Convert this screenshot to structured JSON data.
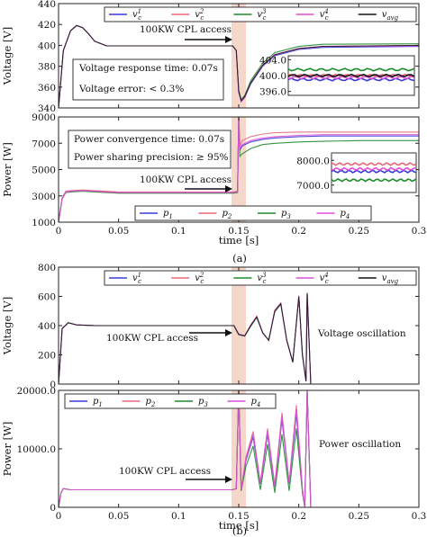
{
  "colors": {
    "series1": "#3b3bd8",
    "series2": "#e56a78",
    "series3": "#1f8a2e",
    "series4": "#e04fd8",
    "avg": "#111111",
    "highlight": "#f2c9b8",
    "frame": "#222222"
  },
  "chart_data": [
    {
      "type": "line",
      "panel": "a-voltage",
      "title": "",
      "xlabel": "",
      "ylabel": "Voltage [V]",
      "xlim": [
        0,
        0.3
      ],
      "ylim": [
        340,
        440
      ],
      "yticks": [
        "340",
        "360",
        "380",
        "400",
        "420",
        "440"
      ],
      "annotations": [
        "100KW CPL access",
        "Voltage response time: 0.07s",
        "Voltage error: < 0.3%"
      ],
      "legend": {
        "placement": "top-right",
        "entries": [
          "v_c^1",
          "v_c^2",
          "v_c^3",
          "v_c^4",
          "v_avg"
        ]
      },
      "inset": {
        "yticks": [
          "404.0",
          "400.0",
          "396.0"
        ]
      },
      "series": [
        {
          "name": "v_c^1",
          "x": [
            0,
            0.004,
            0.01,
            0.015,
            0.02,
            0.025,
            0.03,
            0.04,
            0.05,
            0.145,
            0.148,
            0.15,
            0.152,
            0.155,
            0.16,
            0.17,
            0.18,
            0.2,
            0.22,
            0.3
          ],
          "y": [
            340,
            395,
            414,
            419,
            417,
            411,
            404,
            399.5,
            399.5,
            399.5,
            395,
            355,
            346,
            350,
            363,
            380,
            390,
            396,
            398,
            399
          ]
        },
        {
          "name": "v_c^2",
          "x": [
            0,
            0.004,
            0.01,
            0.015,
            0.02,
            0.025,
            0.03,
            0.04,
            0.05,
            0.145,
            0.148,
            0.15,
            0.152,
            0.155,
            0.16,
            0.17,
            0.18,
            0.2,
            0.22,
            0.3
          ],
          "y": [
            340,
            395,
            414,
            419,
            417,
            411,
            404,
            399.5,
            399.5,
            399.5,
            395,
            356,
            347,
            351,
            364,
            381,
            391,
            397,
            399,
            400
          ]
        },
        {
          "name": "v_c^3",
          "x": [
            0,
            0.004,
            0.01,
            0.015,
            0.02,
            0.025,
            0.03,
            0.04,
            0.05,
            0.145,
            0.148,
            0.15,
            0.152,
            0.155,
            0.16,
            0.17,
            0.18,
            0.2,
            0.22,
            0.3
          ],
          "y": [
            340,
            395,
            414,
            419,
            417,
            411,
            404,
            399.5,
            399.5,
            399.5,
            395,
            357,
            348,
            352,
            366,
            383,
            393,
            399,
            401,
            401.5
          ]
        },
        {
          "name": "v_c^4",
          "x": [
            0,
            0.004,
            0.01,
            0.015,
            0.02,
            0.025,
            0.03,
            0.04,
            0.05,
            0.145,
            0.148,
            0.15,
            0.152,
            0.155,
            0.16,
            0.17,
            0.18,
            0.2,
            0.22,
            0.3
          ],
          "y": [
            340,
            395,
            414,
            419,
            417,
            411,
            404,
            399.5,
            399.5,
            399.5,
            395,
            355,
            346,
            350,
            364,
            381,
            391,
            397,
            399,
            399.5
          ]
        },
        {
          "name": "v_avg",
          "x": [
            0,
            0.004,
            0.01,
            0.015,
            0.02,
            0.025,
            0.03,
            0.04,
            0.05,
            0.145,
            0.148,
            0.15,
            0.152,
            0.155,
            0.16,
            0.17,
            0.18,
            0.2,
            0.22,
            0.3
          ],
          "y": [
            340,
            395,
            414,
            419,
            417,
            411,
            404,
            399.5,
            399.5,
            399.5,
            395,
            356,
            347,
            351,
            364,
            381,
            391,
            397,
            399,
            400
          ]
        }
      ]
    },
    {
      "type": "line",
      "panel": "a-power",
      "title": "",
      "xlabel": "time [s]",
      "ylabel": "Power [W]",
      "xlim": [
        0,
        0.3
      ],
      "ylim": [
        1000,
        9000
      ],
      "xticks": [
        "0",
        "0.05",
        "0.1",
        "0.15",
        "0.2",
        "0.25",
        "0.3"
      ],
      "yticks": [
        "1000",
        "3000",
        "5000",
        "7000",
        "9000"
      ],
      "annotations": [
        "100KW CPL access",
        "Power convergence time: 0.07s",
        "Power sharing precision: ≥ 95%"
      ],
      "legend": {
        "placement": "bottom-center",
        "entries": [
          "p_1",
          "p_2",
          "p_3",
          "p_4"
        ]
      },
      "inset": {
        "yticks": [
          "8000.0",
          "7000.0"
        ]
      },
      "series": [
        {
          "name": "p_1",
          "x": [
            0,
            0.003,
            0.006,
            0.01,
            0.02,
            0.03,
            0.04,
            0.05,
            0.145,
            0.149,
            0.15,
            0.151,
            0.153,
            0.16,
            0.17,
            0.18,
            0.2,
            0.22,
            0.25,
            0.3
          ],
          "y": [
            1000,
            2800,
            3300,
            3350,
            3400,
            3350,
            3300,
            3250,
            3250,
            3300,
            9000,
            6500,
            6800,
            7100,
            7300,
            7400,
            7500,
            7550,
            7550,
            7550
          ]
        },
        {
          "name": "p_2",
          "x": [
            0,
            0.003,
            0.006,
            0.01,
            0.02,
            0.03,
            0.04,
            0.05,
            0.145,
            0.149,
            0.15,
            0.151,
            0.153,
            0.16,
            0.17,
            0.18,
            0.2,
            0.22,
            0.25,
            0.3
          ],
          "y": [
            1000,
            2850,
            3350,
            3400,
            3450,
            3400,
            3350,
            3300,
            3300,
            3350,
            9000,
            6800,
            7200,
            7500,
            7700,
            7800,
            7850,
            7850,
            7850,
            7850
          ]
        },
        {
          "name": "p_3",
          "x": [
            0,
            0.003,
            0.006,
            0.01,
            0.02,
            0.03,
            0.04,
            0.05,
            0.145,
            0.149,
            0.15,
            0.151,
            0.153,
            0.16,
            0.17,
            0.18,
            0.2,
            0.22,
            0.25,
            0.3
          ],
          "y": [
            1000,
            2750,
            3250,
            3300,
            3350,
            3300,
            3250,
            3200,
            3200,
            3250,
            9000,
            6000,
            6200,
            6600,
            6900,
            7000,
            7100,
            7150,
            7200,
            7200
          ]
        },
        {
          "name": "p_4",
          "x": [
            0,
            0.003,
            0.006,
            0.01,
            0.02,
            0.03,
            0.04,
            0.05,
            0.145,
            0.149,
            0.15,
            0.151,
            0.153,
            0.16,
            0.17,
            0.18,
            0.2,
            0.22,
            0.25,
            0.3
          ],
          "y": [
            1000,
            2800,
            3300,
            3350,
            3400,
            3350,
            3300,
            3250,
            3250,
            3300,
            9000,
            6600,
            6900,
            7200,
            7400,
            7500,
            7600,
            7650,
            7650,
            7650
          ]
        }
      ]
    },
    {
      "type": "line",
      "panel": "b-voltage",
      "title": "",
      "xlabel": "",
      "ylabel": "Voltage [V]",
      "xlim": [
        0,
        0.3
      ],
      "ylim": [
        0,
        800
      ],
      "yticks": [
        "0",
        "200",
        "400",
        "600",
        "800"
      ],
      "annotations": [
        "100KW CPL access",
        "Voltage oscillation"
      ],
      "legend": {
        "placement": "top-right",
        "entries": [
          "v_c^1",
          "v_c^2",
          "v_c^3",
          "v_c^4",
          "v_avg"
        ]
      },
      "series": [
        {
          "name": "v_c^1",
          "x": [
            0,
            0.003,
            0.008,
            0.015,
            0.03,
            0.146,
            0.15,
            0.155,
            0.16,
            0.165,
            0.17,
            0.175,
            0.18,
            0.185,
            0.19,
            0.195,
            0.2,
            0.203,
            0.206,
            0.207,
            0.21,
            0.3
          ],
          "y": [
            0,
            380,
            420,
            405,
            400,
            400,
            340,
            330,
            400,
            460,
            350,
            300,
            500,
            550,
            300,
            150,
            600,
            200,
            20,
            620,
            0,
            0
          ]
        },
        {
          "name": "v_c^2",
          "x": [
            0,
            0.003,
            0.008,
            0.015,
            0.03,
            0.146,
            0.15,
            0.155,
            0.16,
            0.165,
            0.17,
            0.175,
            0.18,
            0.185,
            0.19,
            0.195,
            0.2,
            0.203,
            0.206,
            0.207,
            0.21,
            0.3
          ],
          "y": [
            0,
            380,
            420,
            405,
            400,
            400,
            342,
            332,
            405,
            465,
            352,
            298,
            505,
            555,
            298,
            148,
            605,
            205,
            22,
            625,
            0,
            0
          ]
        },
        {
          "name": "v_c^3",
          "x": [
            0,
            0.003,
            0.008,
            0.015,
            0.03,
            0.146,
            0.15,
            0.155,
            0.16,
            0.165,
            0.17,
            0.175,
            0.18,
            0.185,
            0.19,
            0.195,
            0.2,
            0.203,
            0.206,
            0.207,
            0.21,
            0.3
          ],
          "y": [
            0,
            380,
            420,
            405,
            400,
            400,
            338,
            328,
            395,
            455,
            348,
            302,
            495,
            545,
            302,
            152,
            595,
            198,
            18,
            615,
            0,
            0
          ]
        },
        {
          "name": "v_c^4",
          "x": [
            0,
            0.003,
            0.008,
            0.015,
            0.03,
            0.146,
            0.15,
            0.155,
            0.16,
            0.165,
            0.17,
            0.175,
            0.18,
            0.185,
            0.19,
            0.195,
            0.2,
            0.203,
            0.206,
            0.207,
            0.21,
            0.3
          ],
          "y": [
            0,
            380,
            420,
            405,
            400,
            400,
            341,
            331,
            402,
            462,
            351,
            300,
            502,
            552,
            300,
            150,
            602,
            202,
            20,
            622,
            0,
            0
          ]
        },
        {
          "name": "v_avg",
          "x": [
            0,
            0.003,
            0.008,
            0.015,
            0.03,
            0.146,
            0.15,
            0.155,
            0.16,
            0.165,
            0.17,
            0.175,
            0.18,
            0.185,
            0.19,
            0.195,
            0.2,
            0.203,
            0.206,
            0.207,
            0.21,
            0.3
          ],
          "y": [
            0,
            380,
            420,
            405,
            400,
            400,
            340,
            330,
            400,
            460,
            350,
            300,
            500,
            550,
            300,
            150,
            600,
            200,
            20,
            620,
            0,
            0
          ]
        }
      ]
    },
    {
      "type": "line",
      "panel": "b-power",
      "title": "",
      "xlabel": "time [s]",
      "ylabel": "Power [W]",
      "xlim": [
        0,
        0.3
      ],
      "ylim": [
        0,
        20000
      ],
      "xticks": [
        "0",
        "0.05",
        "0.1",
        "0.15",
        "0.2",
        "0.25",
        "0.3"
      ],
      "yticks": [
        "0",
        "10000.0",
        "20000.0"
      ],
      "annotations": [
        "100KW CPL access",
        "Power oscillation"
      ],
      "legend": {
        "placement": "top-left",
        "entries": [
          "p_1",
          "p_2",
          "p_3",
          "p_4"
        ]
      },
      "series": [
        {
          "name": "p_1",
          "x": [
            0,
            0.002,
            0.004,
            0.01,
            0.03,
            0.145,
            0.148,
            0.15,
            0.152,
            0.156,
            0.162,
            0.168,
            0.174,
            0.18,
            0.186,
            0.192,
            0.198,
            0.203,
            0.205,
            0.207,
            0.21,
            0.3
          ],
          "y": [
            0,
            2500,
            3200,
            3000,
            3000,
            3000,
            3200,
            20000,
            3000,
            8000,
            12000,
            4000,
            12500,
            3500,
            15000,
            4000,
            16000,
            3000,
            0,
            20000,
            0,
            0
          ]
        },
        {
          "name": "p_2",
          "x": [
            0,
            0.002,
            0.004,
            0.01,
            0.03,
            0.145,
            0.148,
            0.15,
            0.152,
            0.156,
            0.162,
            0.168,
            0.174,
            0.18,
            0.186,
            0.192,
            0.198,
            0.203,
            0.205,
            0.207,
            0.21,
            0.3
          ],
          "y": [
            0,
            2500,
            3200,
            3000,
            3000,
            3000,
            3200,
            20000,
            3200,
            8600,
            13000,
            4200,
            13500,
            3800,
            16200,
            4200,
            17500,
            3200,
            0,
            20000,
            0,
            0
          ]
        },
        {
          "name": "p_3",
          "x": [
            0,
            0.002,
            0.004,
            0.01,
            0.03,
            0.145,
            0.148,
            0.15,
            0.152,
            0.156,
            0.162,
            0.168,
            0.174,
            0.18,
            0.186,
            0.192,
            0.198,
            0.203,
            0.205,
            0.207,
            0.21,
            0.3
          ],
          "y": [
            0,
            2500,
            3200,
            3000,
            3000,
            3000,
            3200,
            20000,
            2800,
            7000,
            10500,
            3000,
            10800,
            2500,
            12500,
            2800,
            13500,
            2500,
            0,
            20000,
            0,
            0
          ]
        },
        {
          "name": "p_4",
          "x": [
            0,
            0.002,
            0.004,
            0.01,
            0.03,
            0.145,
            0.148,
            0.15,
            0.152,
            0.156,
            0.162,
            0.168,
            0.174,
            0.18,
            0.186,
            0.192,
            0.198,
            0.203,
            0.205,
            0.207,
            0.21,
            0.3
          ],
          "y": [
            0,
            2500,
            3200,
            3000,
            3000,
            3000,
            3200,
            20000,
            3100,
            8300,
            12500,
            4100,
            13000,
            3600,
            15600,
            4100,
            16800,
            3100,
            0,
            20000,
            0,
            0
          ]
        }
      ]
    }
  ],
  "captions": [
    "(a)",
    "(b)"
  ]
}
